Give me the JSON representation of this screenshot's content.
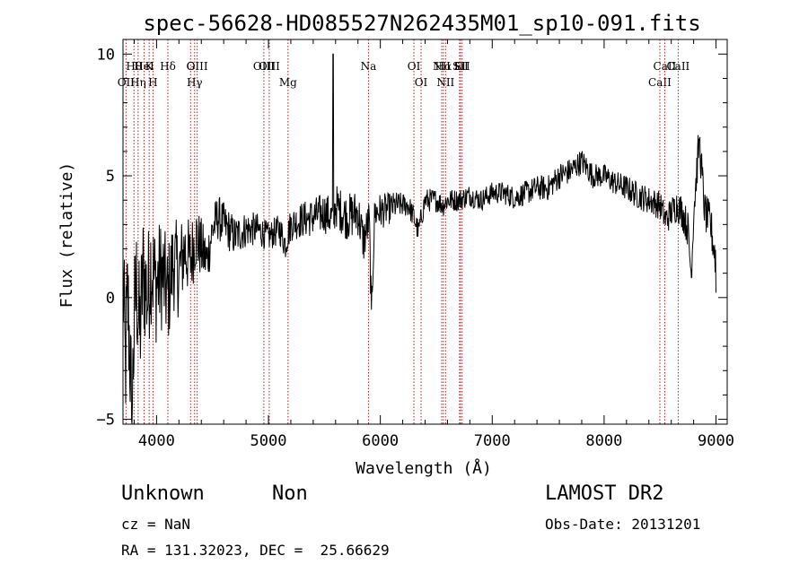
{
  "chart_data": {
    "type": "line",
    "title": "spec-56628-HD085527N262435M01_sp10-091.fits",
    "xlabel": "Wavelength (Å)",
    "ylabel": "Flux (relative)",
    "xlim": [
      3700,
      9100
    ],
    "ylim": [
      -5.2,
      10.6
    ],
    "x_ticks": [
      4000,
      5000,
      6000,
      7000,
      8000,
      9000
    ],
    "y_ticks": [
      -5,
      0,
      5,
      10
    ],
    "grid": false,
    "line_color": "#000000",
    "marker_line_color": "#b22222",
    "series_points": [
      [
        3700,
        1.0
      ],
      [
        3720,
        -3.0
      ],
      [
        3740,
        0.0
      ],
      [
        3760,
        -2.0
      ],
      [
        3780,
        -5.0
      ],
      [
        3800,
        -1.0
      ],
      [
        3820,
        0.5
      ],
      [
        3850,
        -1.5
      ],
      [
        3880,
        1.0
      ],
      [
        3920,
        0.0
      ],
      [
        3950,
        1.5
      ],
      [
        3990,
        0.5
      ],
      [
        4050,
        1.0
      ],
      [
        4100,
        0.0
      ],
      [
        4150,
        1.5
      ],
      [
        4200,
        1.0
      ],
      [
        4250,
        2.0
      ],
      [
        4300,
        1.5
      ],
      [
        4350,
        2.5
      ],
      [
        4400,
        2.0
      ],
      [
        4450,
        1.5
      ],
      [
        4500,
        2.8
      ],
      [
        4550,
        3.3
      ],
      [
        4600,
        3.0
      ],
      [
        4700,
        2.5
      ],
      [
        4800,
        2.8
      ],
      [
        4900,
        2.8
      ],
      [
        5000,
        2.5
      ],
      [
        5100,
        2.8
      ],
      [
        5150,
        2.2
      ],
      [
        5200,
        3.0
      ],
      [
        5300,
        3.2
      ],
      [
        5400,
        3.3
      ],
      [
        5500,
        3.5
      ],
      [
        5580,
        3.2
      ],
      [
        5600,
        3.8
      ],
      [
        5700,
        3.3
      ],
      [
        5800,
        3.5
      ],
      [
        5850,
        2.3
      ],
      [
        5900,
        3.2
      ],
      [
        5920,
        -0.5
      ],
      [
        5950,
        3.5
      ],
      [
        6050,
        3.6
      ],
      [
        6150,
        3.8
      ],
      [
        6250,
        3.8
      ],
      [
        6300,
        3.3
      ],
      [
        6340,
        2.7
      ],
      [
        6400,
        4.0
      ],
      [
        6500,
        4.0
      ],
      [
        6560,
        3.8
      ],
      [
        6600,
        4.0
      ],
      [
        6700,
        4.0
      ],
      [
        6800,
        4.2
      ],
      [
        6900,
        4.0
      ],
      [
        7000,
        4.3
      ],
      [
        7100,
        4.3
      ],
      [
        7200,
        4.1
      ],
      [
        7300,
        4.3
      ],
      [
        7400,
        4.5
      ],
      [
        7500,
        4.5
      ],
      [
        7600,
        5.0
      ],
      [
        7700,
        5.2
      ],
      [
        7800,
        5.6
      ],
      [
        7900,
        5.0
      ],
      [
        8000,
        5.0
      ],
      [
        8100,
        4.7
      ],
      [
        8200,
        4.5
      ],
      [
        8300,
        4.2
      ],
      [
        8400,
        4.0
      ],
      [
        8500,
        3.8
      ],
      [
        8550,
        3.2
      ],
      [
        8600,
        3.5
      ],
      [
        8650,
        3.8
      ],
      [
        8700,
        3.5
      ],
      [
        8750,
        2.8
      ],
      [
        8780,
        0.8
      ],
      [
        8800,
        3.5
      ],
      [
        8850,
        6.5
      ],
      [
        8900,
        3.5
      ],
      [
        8950,
        3.0
      ],
      [
        9000,
        1.5
      ]
    ],
    "series_spikes": [
      [
        3775,
        -5.0
      ],
      [
        5578,
        10.0
      ],
      [
        5920,
        -0.5
      ],
      [
        8780,
        0.8
      ],
      [
        8850,
        6.5
      ],
      [
        9000,
        0.2
      ]
    ],
    "noise_amplitude": [
      [
        3700,
        3.0
      ],
      [
        4000,
        2.5
      ],
      [
        4300,
        1.6
      ],
      [
        4500,
        1.0
      ],
      [
        5000,
        0.6
      ],
      [
        5400,
        0.8
      ],
      [
        5800,
        1.0
      ],
      [
        6200,
        0.5
      ],
      [
        7000,
        0.45
      ],
      [
        7600,
        0.55
      ],
      [
        8000,
        0.5
      ],
      [
        8500,
        0.6
      ],
      [
        9000,
        0.9
      ]
    ],
    "line_markers": [
      {
        "label": "OII",
        "wavelength": 3727,
        "row": 1
      },
      {
        "label": "Hθ",
        "wavelength": 3798,
        "row": 0
      },
      {
        "label": "Hη",
        "wavelength": 3835,
        "row": 1
      },
      {
        "label": "HeI",
        "wavelength": 3889,
        "row": 0
      },
      {
        "label": "K",
        "wavelength": 3934,
        "row": 0
      },
      {
        "label": "H",
        "wavelength": 3968,
        "row": 1
      },
      {
        "label": "Hδ",
        "wavelength": 4101,
        "row": 0
      },
      {
        "label": "G",
        "wavelength": 4304,
        "row": 0
      },
      {
        "label": "Hγ",
        "wavelength": 4340,
        "row": 1
      },
      {
        "label": "OIII",
        "wavelength": 4363,
        "row": 0
      },
      {
        "label": "OIII",
        "wavelength": 4959,
        "row": 0
      },
      {
        "label": "OIII",
        "wavelength": 5007,
        "row": 0
      },
      {
        "label": "Mg",
        "wavelength": 5175,
        "row": 1
      },
      {
        "label": "Na",
        "wavelength": 5894,
        "row": 0
      },
      {
        "label": "OI",
        "wavelength": 6300,
        "row": 0
      },
      {
        "label": "OI",
        "wavelength": 6364,
        "row": 1
      },
      {
        "label": "NII",
        "wavelength": 6548,
        "row": 0
      },
      {
        "label": "Hα",
        "wavelength": 6563,
        "row": 0
      },
      {
        "label": "NII",
        "wavelength": 6583,
        "row": 1
      },
      {
        "label": "SII",
        "wavelength": 6716,
        "row": 0
      },
      {
        "label": "Li",
        "wavelength": 6708,
        "row": 0
      },
      {
        "label": "SII",
        "wavelength": 6731,
        "row": 0
      },
      {
        "label": "CaII",
        "wavelength": 8498,
        "row": 1
      },
      {
        "label": "CaII",
        "wavelength": 8542,
        "row": 0
      },
      {
        "label": "CaII",
        "wavelength": 8662,
        "row": 0
      }
    ]
  },
  "info": {
    "class": "Unknown",
    "subclass": "Non",
    "survey": "LAMOST DR2",
    "cz": "cz = NaN",
    "obs_date": "Obs-Date: 20131201",
    "coords": "RA = 131.32023, DEC =  25.66629"
  }
}
